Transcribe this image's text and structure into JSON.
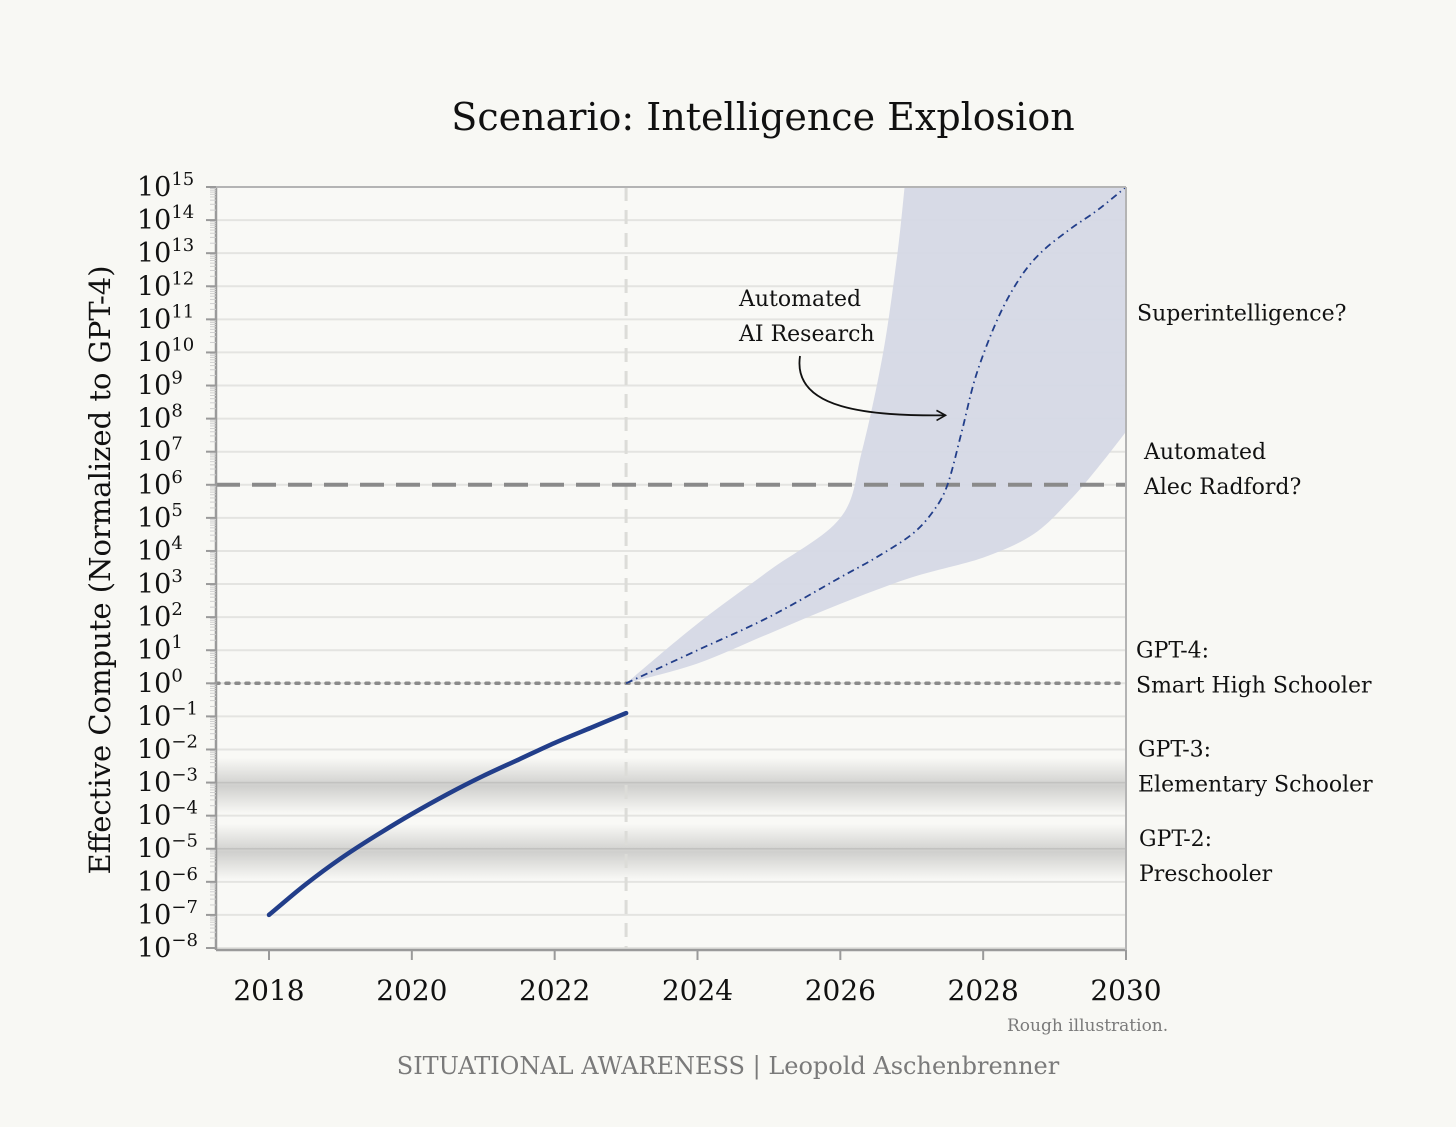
{
  "chart_data": {
    "type": "line",
    "title": "Scenario: Intelligence Explosion",
    "xlabel": "",
    "ylabel": "Effective Compute (Normalized to GPT-4)",
    "xlim": [
      2017.3,
      2030
    ],
    "ylim_log10": [
      -8,
      15
    ],
    "x_ticks": [
      2018,
      2020,
      2022,
      2024,
      2026,
      2028,
      2030
    ],
    "y_tick_exponents": [
      15,
      14,
      13,
      12,
      11,
      10,
      9,
      8,
      7,
      6,
      5,
      4,
      3,
      2,
      1,
      0,
      -1,
      -2,
      -3,
      -4,
      -5,
      -6,
      -7,
      -8
    ],
    "y_tick_base": "10",
    "grid": "horizontal",
    "series": [
      {
        "name": "historical",
        "style": "solid",
        "x": [
          2018,
          2018.5,
          2019,
          2019.5,
          2020,
          2020.5,
          2021,
          2021.5,
          2022,
          2022.5,
          2023
        ],
        "y_log10": [
          -7.0,
          -6.1,
          -5.3,
          -4.6,
          -3.95,
          -3.35,
          -2.8,
          -2.3,
          -1.8,
          -1.35,
          -0.9
        ]
      },
      {
        "name": "projection",
        "style": "dash-dot",
        "x": [
          2023,
          2024,
          2025,
          2026,
          2026.5,
          2027,
          2027.3,
          2027.5,
          2027.7,
          2027.9,
          2028.2,
          2028.5,
          2028.8,
          2029.2,
          2029.6,
          2030
        ],
        "y_log10": [
          0,
          1.0,
          2.0,
          3.2,
          3.8,
          4.5,
          5.2,
          6.0,
          7.6,
          9.3,
          11.0,
          12.2,
          13.0,
          13.7,
          14.3,
          15.0
        ]
      }
    ],
    "uncertainty_band": {
      "upper": {
        "x": [
          2023,
          2024,
          2025,
          2026,
          2026.3,
          2026.6,
          2026.8,
          2026.9
        ],
        "y_log10": [
          0,
          1.8,
          3.4,
          5.0,
          7.0,
          10.0,
          13.0,
          15.0
        ]
      },
      "lower": {
        "x": [
          2023,
          2024,
          2025,
          2026,
          2027,
          2028,
          2028.7,
          2029.2,
          2029.6,
          2030
        ],
        "y_log10": [
          0,
          0.6,
          1.5,
          2.4,
          3.2,
          3.8,
          4.5,
          5.5,
          6.5,
          7.6
        ]
      }
    },
    "reference_lines": [
      {
        "name": "automated-alec-radford",
        "y_log10": 6,
        "style": "dashed"
      },
      {
        "name": "gpt4-level",
        "y_log10": 0,
        "style": "dotted"
      }
    ],
    "vertical_marker": {
      "x": 2023,
      "style": "dashed"
    },
    "bands": [
      {
        "name": "gpt3-band",
        "center_log10": -3
      },
      {
        "name": "gpt2-band",
        "center_log10": -5
      }
    ],
    "level_labels": [
      {
        "name": "superintelligence",
        "lines": [
          "Superintelligence?"
        ],
        "y_log10": 11.2
      },
      {
        "name": "alec-radford",
        "lines": [
          "Automated",
          "Alec Radford?"
        ],
        "y_log10": 6.6
      },
      {
        "name": "gpt4",
        "lines": [
          "GPT-4:",
          "Smart High Schooler"
        ],
        "y_log10": 0.6
      },
      {
        "name": "gpt3",
        "lines": [
          "GPT-3:",
          "Elementary Schooler"
        ],
        "y_log10": -2.4
      },
      {
        "name": "gpt2",
        "lines": [
          "GPT-2:",
          "Preschooler"
        ],
        "y_log10": -5.1
      }
    ],
    "annotation": {
      "lines": [
        "Automated",
        "AI Research"
      ],
      "arrow_target": {
        "x": 2027.5,
        "y_log10": 8.1
      }
    },
    "note": "Rough illustration.",
    "footer": "SITUATIONAL AWARENESS | Leopold Aschenbrenner",
    "colors": {
      "line": "#223e8a",
      "band": "#d5d8e5",
      "grid": "#e4e4e1",
      "axis": "#9a9a9a",
      "ref_line": "#8a8a8a",
      "text": "#111111",
      "muted": "#7a7a7a"
    }
  }
}
